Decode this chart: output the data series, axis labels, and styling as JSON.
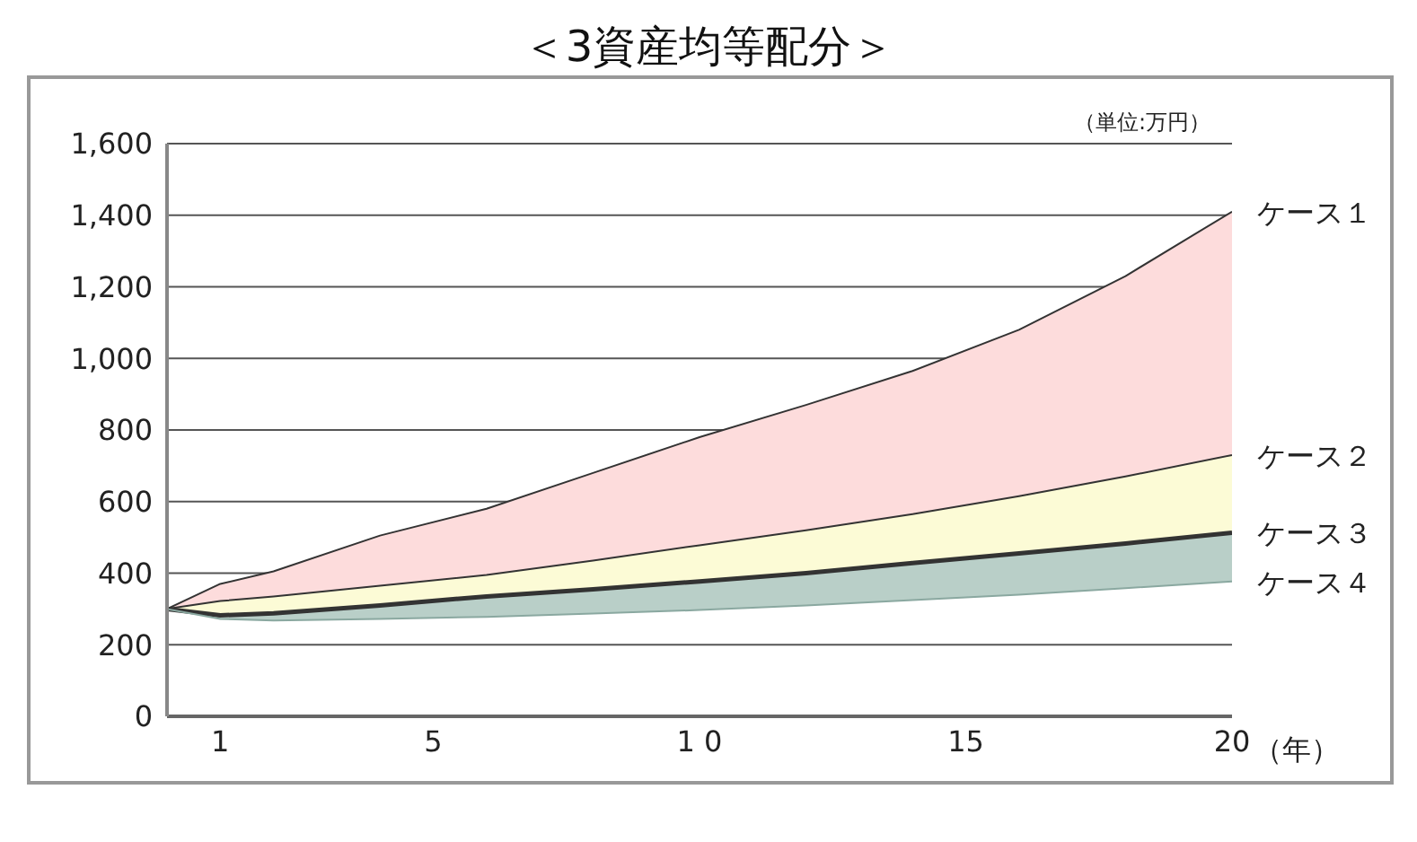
{
  "chart_data": {
    "type": "area",
    "title": "＜3資産均等配分＞",
    "xlabel": "（年）",
    "annotations": [
      "（単位:万円）"
    ],
    "x": [
      0,
      1,
      2,
      4,
      6,
      8,
      10,
      12,
      14,
      16,
      18,
      20
    ],
    "xlim": [
      0,
      20
    ],
    "xticks": [
      1,
      5,
      {
        "value": 10,
        "label": "1 0"
      },
      15,
      20
    ],
    "ylim": [
      0,
      1600
    ],
    "yticks": [
      0,
      200,
      400,
      600,
      800,
      {
        "value": 1000,
        "label": "1,000"
      },
      {
        "value": 1200,
        "label": "1,200"
      },
      {
        "value": 1400,
        "label": "1,400"
      },
      {
        "value": 1600,
        "label": "1,600"
      }
    ],
    "grid": "y",
    "series": [
      {
        "name": "ケース１",
        "color": "#fddcdc",
        "values": [
          300,
          370,
          405,
          505,
          580,
          680,
          780,
          870,
          965,
          1080,
          1230,
          1410
        ]
      },
      {
        "name": "ケース２",
        "color": "#fcfbd6",
        "values": [
          300,
          322,
          335,
          365,
          395,
          435,
          478,
          520,
          565,
          615,
          670,
          730
        ]
      },
      {
        "name": "ケース３",
        "color": "#b9cfc8",
        "values": [
          300,
          282,
          288,
          310,
          335,
          355,
          377,
          400,
          428,
          455,
          483,
          513
        ]
      },
      {
        "name": "ケース４",
        "type": "line",
        "color": "#8aa8a0",
        "values": [
          300,
          272,
          268,
          272,
          278,
          287,
          297,
          310,
          325,
          340,
          358,
          377
        ]
      }
    ]
  }
}
